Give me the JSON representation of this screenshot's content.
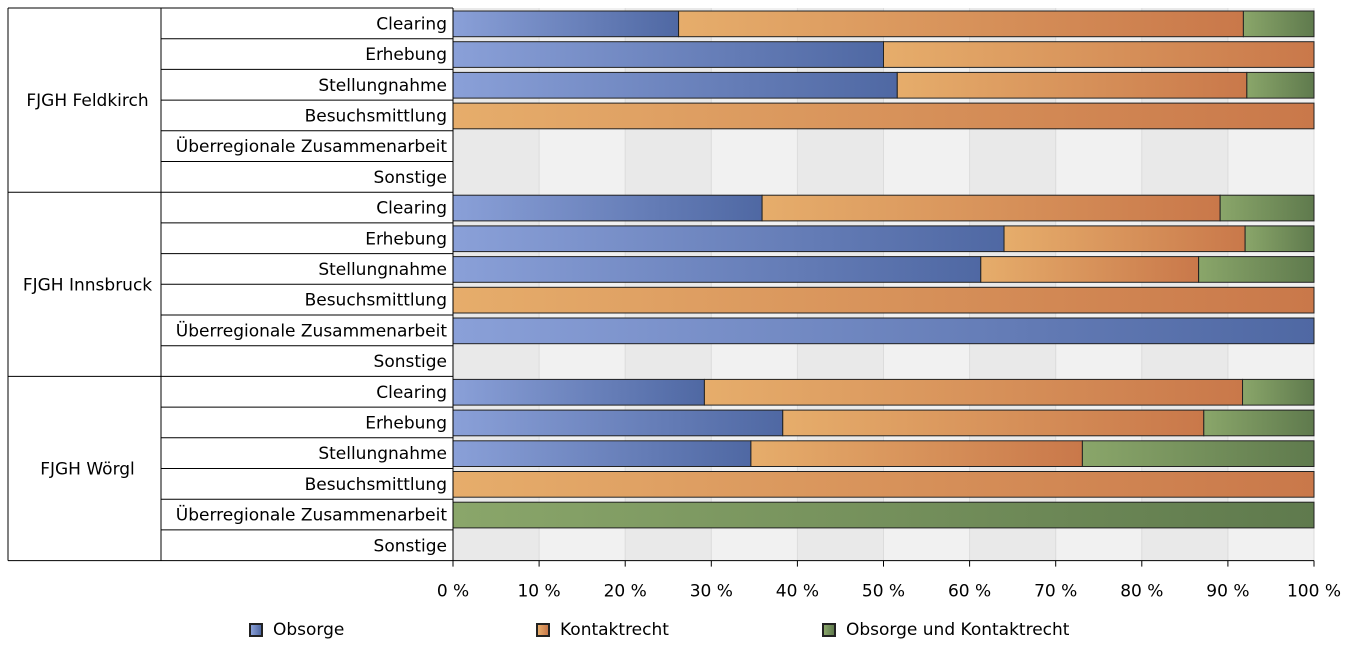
{
  "chart_data": {
    "type": "bar",
    "orientation": "horizontal",
    "stacked": "percent",
    "groups": [
      {
        "name": "FJGH Feldkirch",
        "categories": [
          "Clearing",
          "Erhebung",
          "Stellungnahme",
          "Besuchsmittlung",
          "Überregionale Zusammenarbeit",
          "Sonstige"
        ],
        "obsorge": [
          26.2,
          50.0,
          51.6,
          0,
          0,
          0
        ],
        "kontaktrecht": [
          65.6,
          50.0,
          40.6,
          100,
          0,
          0
        ],
        "beides": [
          8.2,
          0,
          7.8,
          0,
          0,
          0
        ]
      },
      {
        "name": "FJGH Innsbruck",
        "categories": [
          "Clearing",
          "Erhebung",
          "Stellungnahme",
          "Besuchsmittlung",
          "Überregionale Zusammenarbeit",
          "Sonstige"
        ],
        "obsorge": [
          35.9,
          64.0,
          61.3,
          0,
          100,
          0
        ],
        "kontaktrecht": [
          53.2,
          28.0,
          25.3,
          100,
          0,
          0
        ],
        "beides": [
          10.9,
          8.0,
          13.4,
          0,
          0,
          0
        ]
      },
      {
        "name": "FJGH Wörgl",
        "categories": [
          "Clearing",
          "Erhebung",
          "Stellungnahme",
          "Besuchsmittlung",
          "Überregionale Zusammenarbeit",
          "Sonstige"
        ],
        "obsorge": [
          29.2,
          38.3,
          34.6,
          0,
          0,
          0
        ],
        "kontaktrecht": [
          62.5,
          48.9,
          38.5,
          100,
          0,
          0
        ],
        "beides": [
          8.3,
          12.8,
          26.9,
          0,
          100,
          0
        ]
      }
    ],
    "series": [
      {
        "name": "Obsorge",
        "key": "obsorge",
        "color_light": "#8aa0d8",
        "color_dark": "#4f68a3"
      },
      {
        "name": "Kontaktrecht",
        "key": "kontaktrecht",
        "color_light": "#e6ad6b",
        "color_dark": "#c9784a"
      },
      {
        "name": "Obsorge und Kontaktrecht",
        "key": "beides",
        "color_light": "#8aa66a",
        "color_dark": "#5f7a4d"
      }
    ],
    "x_ticks": [
      "0 %",
      "10 %",
      "20 %",
      "30 %",
      "40 %",
      "50 %",
      "60 %",
      "70 %",
      "80 %",
      "90 %",
      "100 %"
    ],
    "xlim": [
      0,
      100
    ],
    "grid": true,
    "legend_position": "bottom"
  }
}
